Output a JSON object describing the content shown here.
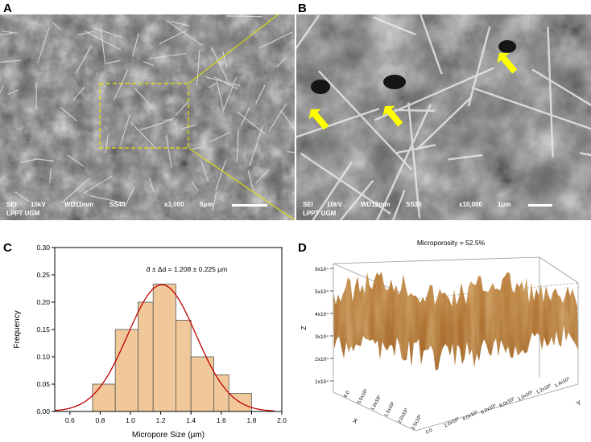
{
  "panels": {
    "a": {
      "letter": "A",
      "info": {
        "mode": "SEI",
        "voltage": "10kV",
        "wd": "WD11mm",
        "ss": "SS40",
        "mag": "x3,000",
        "scale": "5μm",
        "lab": "LPPT UGM"
      }
    },
    "b": {
      "letter": "B",
      "info": {
        "mode": "SEI",
        "voltage": "10kV",
        "wd": "WD12mm",
        "ss": "SS30",
        "mag": "x10,000",
        "scale": "1μm",
        "lab": "LPPT UGM"
      }
    },
    "c": {
      "letter": "C"
    },
    "d": {
      "letter": "D"
    }
  },
  "colors": {
    "bar_fill": "#f1c89a",
    "bar_stroke": "#555555",
    "fit_curve": "#c00000",
    "surface": "#b87a3c",
    "zoom_box": "#e6e600",
    "arrow": "#ffff00"
  },
  "chart_data": [
    {
      "type": "bar",
      "annotation": "d̄ ± Δd = 1.208 ± 0.225 μm",
      "xlabel": "Micropore Size (μm)",
      "ylabel": "Frequency",
      "bin_centers": [
        0.8,
        1.0,
        1.1,
        1.2,
        1.3,
        1.45,
        1.6,
        1.75
      ],
      "bars": [
        {
          "x0": 0.75,
          "x1": 0.9,
          "value": 0.05
        },
        {
          "x0": 0.9,
          "x1": 1.05,
          "value": 0.15
        },
        {
          "x0": 1.05,
          "x1": 1.15,
          "value": 0.2
        },
        {
          "x0": 1.15,
          "x1": 1.3,
          "value": 0.233
        },
        {
          "x0": 1.3,
          "x1": 1.4,
          "value": 0.167
        },
        {
          "x0": 1.4,
          "x1": 1.55,
          "value": 0.1
        },
        {
          "x0": 1.55,
          "x1": 1.65,
          "value": 0.067
        },
        {
          "x0": 1.65,
          "x1": 1.8,
          "value": 0.033
        }
      ],
      "fit": {
        "type": "gaussian",
        "mean": 1.208,
        "sigma": 0.225,
        "peak": 0.232
      },
      "xlim": [
        0.5,
        2.0
      ],
      "ylim": [
        0,
        0.3
      ],
      "xticks": [
        "0.6",
        "0.8",
        "1.0",
        "1.2",
        "1.4",
        "1.6",
        "1.8",
        "2.0"
      ],
      "yticks": [
        "0.00",
        "0.05",
        "0.10",
        "0.15",
        "0.20",
        "0.25",
        "0.30"
      ]
    },
    {
      "type": "surface",
      "title": "Microporosity = 52.5%",
      "zlabel": "Z",
      "xlabel": "X",
      "ylabel": "Y",
      "zticks": [
        "1x10⁴",
        "2x10⁴",
        "3x10⁴",
        "4x10⁴",
        "5x10⁴",
        "6x10⁴"
      ],
      "xticks": [
        "0.0",
        "5.0x10²",
        "1.0x10³",
        "1.5x10³",
        "2.0x10³",
        "2.5x10³"
      ],
      "yticks": [
        "0.0",
        "2.0x10²",
        "4.0x10²",
        "6.0x10²",
        "8.0x10²",
        "1.0x10³",
        "1.2x10³",
        "1.4x10³"
      ]
    }
  ]
}
